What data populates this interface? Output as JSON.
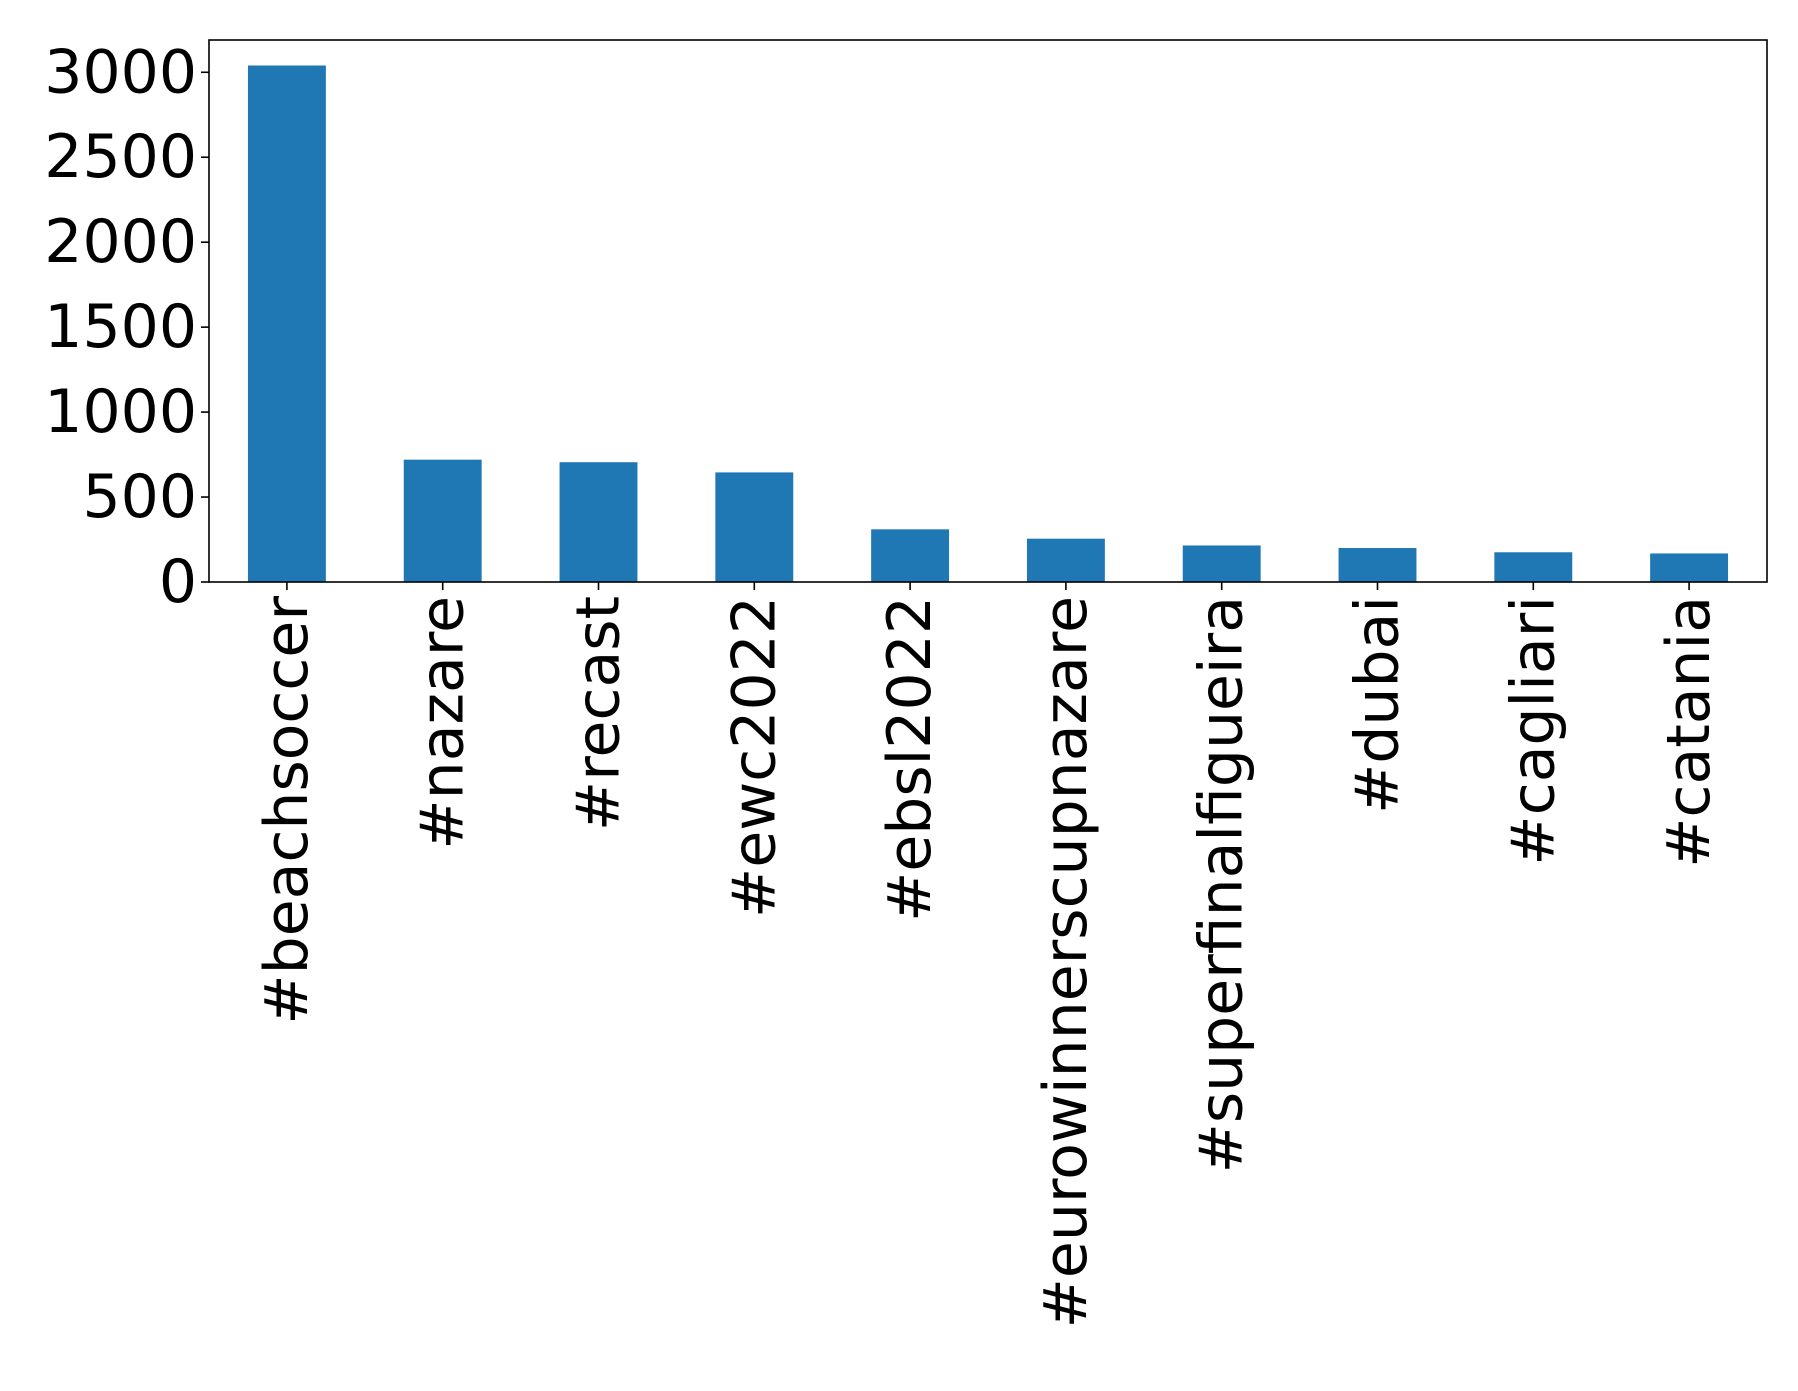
{
  "chart_data": {
    "type": "bar",
    "title": "",
    "xlabel": "",
    "ylabel": "",
    "categories": [
      "#beachsoccer",
      "#nazare",
      "#recast",
      "#ewc2022",
      "#ebsl2022",
      "#eurowinnerscupnazare",
      "#superfinalfigueira",
      "#dubai",
      "#cagliari",
      "#catania"
    ],
    "values": [
      3040,
      720,
      705,
      645,
      310,
      255,
      215,
      200,
      175,
      168
    ],
    "ylim": [
      0,
      3190
    ],
    "yticks": [
      0,
      500,
      1000,
      1500,
      2000,
      2500,
      3000
    ],
    "bar_color": "#1f77b4",
    "grid": false,
    "legend": "none"
  }
}
